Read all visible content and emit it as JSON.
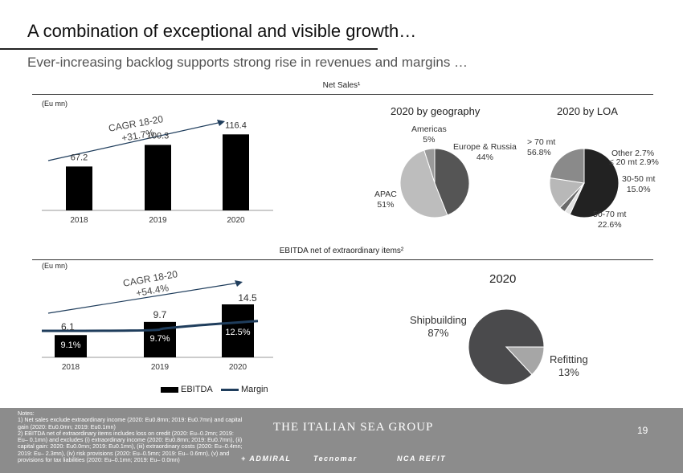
{
  "header": {
    "title": "A combination of exceptional and visible growth…",
    "subtitle": "Ever-increasing backlog supports strong rise in revenues and margins …"
  },
  "net_sales": {
    "section_label": "Net Sales¹",
    "unit": "(Eu mn)",
    "cagr_line1": "CAGR 18-20",
    "cagr_line2": "+31.7%",
    "geo_title": "2020 by geography",
    "loa_title": "2020 by LOA",
    "geo_labels": {
      "americas": "Americas\n5%",
      "europe": "Europe & Russia\n44%",
      "apac": "APAC\n51%"
    },
    "loa_labels": {
      "gt70": "> 70 mt\n56.8%",
      "other": "Other 2.7%",
      "le20": "≤ 20 mt 2.9%",
      "m30_50": "30-50 mt\n15.0%",
      "m50_70": "50-70 mt\n22.6%"
    }
  },
  "ebitda": {
    "section_label": "EBITDA net of extraordinary items²",
    "unit": "(Eu mn)",
    "cagr_line1": "CAGR 18-20",
    "cagr_line2": "+54.4%",
    "pie_title": "2020",
    "shipbuilding_label": "Shipbuilding\n87%",
    "refitting_label": "Refitting\n13%",
    "legend_bar": "EBITDA",
    "legend_line": "Margin"
  },
  "chart_data": [
    {
      "type": "bar",
      "title": "Net Sales¹",
      "ylabel": "(Eu mn)",
      "categories": [
        "2018",
        "2019",
        "2020"
      ],
      "values": [
        67.2,
        100.3,
        116.4
      ],
      "value_labels": [
        "67.2",
        "100.3",
        "116.4"
      ],
      "ylim": [
        0,
        150
      ],
      "annotation": "CAGR 18-20 +31.7%",
      "colors": {
        "bar": "#000000"
      }
    },
    {
      "type": "pie",
      "title": "2020 by geography",
      "labels": [
        "Americas",
        "Europe & Russia",
        "APAC"
      ],
      "values": [
        5,
        44,
        51
      ],
      "colors": [
        "#9a9a9a",
        "#555555",
        "#bdbdbd"
      ]
    },
    {
      "type": "pie",
      "title": "2020 by LOA",
      "labels": [
        "> 70 mt",
        "Other",
        "≤ 20 mt",
        "30-50 mt",
        "50-70 mt"
      ],
      "values": [
        56.8,
        2.7,
        2.9,
        15.0,
        22.6
      ],
      "colors": [
        "#222222",
        "#e2e2e2",
        "#6a6a6a",
        "#b8b8b8",
        "#8a8a8a"
      ]
    },
    {
      "type": "bar",
      "title": "EBITDA net of extraordinary items²",
      "ylabel": "(Eu mn)",
      "categories": [
        "2018",
        "2019",
        "2020"
      ],
      "series": [
        {
          "name": "EBITDA",
          "values": [
            6.1,
            9.7,
            14.5
          ],
          "value_labels": [
            "6.1",
            "9.7",
            "14.5"
          ]
        },
        {
          "name": "Margin",
          "values": [
            9.1,
            9.7,
            12.5
          ],
          "value_labels": [
            "9.1%",
            "9.7%",
            "12.5%"
          ]
        }
      ],
      "ylim": [
        0,
        20
      ],
      "annotation": "CAGR 18-20 +54.4%",
      "colors": {
        "bar": "#000000",
        "line": "#1f3d5c"
      }
    },
    {
      "type": "pie",
      "title": "2020",
      "labels": [
        "Shipbuilding",
        "Refitting"
      ],
      "values": [
        87,
        13
      ],
      "colors": [
        "#4a4a4c",
        "#a6a6a6"
      ]
    }
  ],
  "footer": {
    "notes": "Notes:\n1) Net sales exclude extraordinary income (2020: Eu0.8mn; 2019: Eu0.7mn) and capital gain (2020: Eu0.0mn; 2019: Eu0.1mn)\n2) EBITDA net of extraordinary items includes loss on credit (2020: Eu–0.2mn; 2019: Eu– 0.1mn) and excludes (i) extraordinary income (2020: Eu0.8mn; 2019: Eu0.7mn), (ii) capital gain: 2020: Eu0.0mn; 2019: Eu0.1mn), (iii) extraordinary costs (2020: Eu–0.4mn; 2019: Eu– 2.3mn), (iv) risk provisions (2020: Eu–0.5mn; 2019: Eu– 0.6mn), (v) and provisions for tax liabilities (2020: Eu–0.1mn; 2019: Eu– 0.0mn)",
    "brand": "THE ITALIAN SEA GROUP",
    "page_number": "19",
    "brands": [
      "+ ADMIRAL",
      "Tecnomar",
      "NCA REFIT"
    ]
  }
}
